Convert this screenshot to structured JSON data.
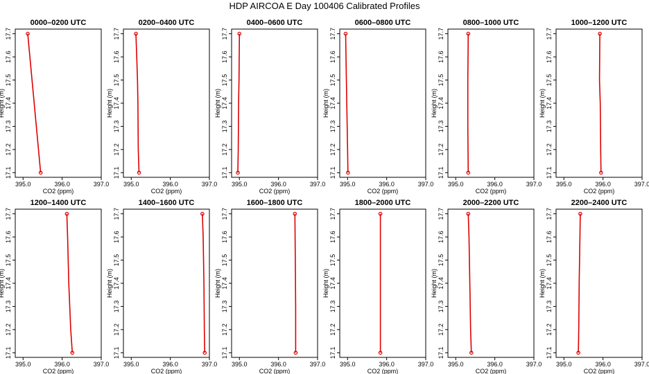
{
  "figure": {
    "title": "HDP AIRCOA E  Day 100406  Calibrated Profiles",
    "xlabel": "CO2 (ppm)",
    "ylabel": "Height (m)",
    "colors": {
      "profile": "#dd0000",
      "axis": "#000000"
    }
  },
  "chart_data": [
    {
      "type": "line",
      "title": "0000–0200 UTC",
      "xlim": [
        394.8,
        397.0
      ],
      "ylim": [
        17.08,
        17.72
      ],
      "xticks": [
        "395.0",
        "396.0",
        "397.0"
      ],
      "yticks": [
        "17.1",
        "17.2",
        "17.3",
        "17.4",
        "17.5",
        "17.6",
        "17.7"
      ],
      "series": [
        {
          "x": [
            395.12,
            395.45
          ],
          "y": [
            17.7,
            17.1
          ]
        }
      ]
    },
    {
      "type": "line",
      "title": "0200–0400 UTC",
      "xlim": [
        394.8,
        397.0
      ],
      "ylim": [
        17.08,
        17.72
      ],
      "xticks": [
        "395.0",
        "396.0",
        "397.0"
      ],
      "yticks": [
        "17.1",
        "17.2",
        "17.3",
        "17.4",
        "17.5",
        "17.6",
        "17.7"
      ],
      "series": [
        {
          "x": [
            395.12,
            395.14,
            395.16,
            395.17,
            395.18,
            395.2
          ],
          "y": [
            17.7,
            17.6,
            17.5,
            17.4,
            17.2,
            17.1
          ]
        }
      ]
    },
    {
      "type": "line",
      "title": "0400–0600 UTC",
      "xlim": [
        394.8,
        397.0
      ],
      "ylim": [
        17.08,
        17.72
      ],
      "xticks": [
        "395.0",
        "396.0",
        "397.0"
      ],
      "yticks": [
        "17.1",
        "17.2",
        "17.3",
        "17.4",
        "17.5",
        "17.6",
        "17.7"
      ],
      "series": [
        {
          "x": [
            395.0,
            394.99,
            394.98,
            394.97,
            394.96
          ],
          "y": [
            17.7,
            17.5,
            17.4,
            17.2,
            17.1
          ]
        }
      ]
    },
    {
      "type": "line",
      "title": "0600–0800 UTC",
      "xlim": [
        394.8,
        397.0
      ],
      "ylim": [
        17.08,
        17.72
      ],
      "xticks": [
        "395.0",
        "396.0",
        "397.0"
      ],
      "yticks": [
        "17.1",
        "17.2",
        "17.3",
        "17.4",
        "17.5",
        "17.6",
        "17.7"
      ],
      "series": [
        {
          "x": [
            394.95,
            394.96,
            394.98,
            395.0,
            395.01
          ],
          "y": [
            17.7,
            17.6,
            17.4,
            17.2,
            17.1
          ]
        }
      ]
    },
    {
      "type": "line",
      "title": "0800–1000 UTC",
      "xlim": [
        394.8,
        397.0
      ],
      "ylim": [
        17.08,
        17.72
      ],
      "xticks": [
        "395.0",
        "396.0",
        "397.0"
      ],
      "yticks": [
        "17.1",
        "17.2",
        "17.3",
        "17.4",
        "17.5",
        "17.6",
        "17.7"
      ],
      "series": [
        {
          "x": [
            395.32,
            395.31,
            395.31,
            395.32
          ],
          "y": [
            17.7,
            17.5,
            17.3,
            17.1
          ]
        }
      ]
    },
    {
      "type": "line",
      "title": "1000–1200 UTC",
      "xlim": [
        394.8,
        397.0
      ],
      "ylim": [
        17.08,
        17.72
      ],
      "xticks": [
        "395.0",
        "396.0",
        "397.0"
      ],
      "yticks": [
        "17.1",
        "17.2",
        "17.3",
        "17.4",
        "17.5",
        "17.6",
        "17.7"
      ],
      "series": [
        {
          "x": [
            395.92,
            395.91,
            395.93,
            395.94,
            395.95
          ],
          "y": [
            17.7,
            17.5,
            17.4,
            17.2,
            17.1
          ]
        }
      ]
    },
    {
      "type": "line",
      "title": "1200–1400 UTC",
      "xlim": [
        394.8,
        397.0
      ],
      "ylim": [
        17.08,
        17.72
      ],
      "xticks": [
        "395.0",
        "396.0",
        "397.0"
      ],
      "yticks": [
        "17.1",
        "17.2",
        "17.3",
        "17.4",
        "17.5",
        "17.6",
        "17.7"
      ],
      "series": [
        {
          "x": [
            396.12,
            396.14,
            396.17,
            396.22,
            396.26
          ],
          "y": [
            17.7,
            17.6,
            17.4,
            17.2,
            17.1
          ]
        }
      ]
    },
    {
      "type": "line",
      "title": "1400–1600 UTC",
      "xlim": [
        394.8,
        397.0
      ],
      "ylim": [
        17.08,
        17.72
      ],
      "xticks": [
        "395.0",
        "396.0",
        "397.0"
      ],
      "yticks": [
        "17.1",
        "17.2",
        "17.3",
        "17.4",
        "17.5",
        "17.6",
        "17.7"
      ],
      "series": [
        {
          "x": [
            396.82,
            396.84,
            396.86,
            396.87,
            396.88
          ],
          "y": [
            17.7,
            17.6,
            17.4,
            17.2,
            17.1
          ]
        }
      ]
    },
    {
      "type": "line",
      "title": "1600–1800 UTC",
      "xlim": [
        394.8,
        397.0
      ],
      "ylim": [
        17.08,
        17.72
      ],
      "xticks": [
        "395.0",
        "396.0",
        "397.0"
      ],
      "yticks": [
        "17.1",
        "17.2",
        "17.3",
        "17.4",
        "17.5",
        "17.6",
        "17.7"
      ],
      "series": [
        {
          "x": [
            396.42,
            396.43,
            396.44,
            396.44
          ],
          "y": [
            17.7,
            17.5,
            17.3,
            17.1
          ]
        }
      ]
    },
    {
      "type": "line",
      "title": "1800–2000 UTC",
      "xlim": [
        394.8,
        397.0
      ],
      "ylim": [
        17.08,
        17.72
      ],
      "xticks": [
        "395.0",
        "396.0",
        "397.0"
      ],
      "yticks": [
        "17.1",
        "17.2",
        "17.3",
        "17.4",
        "17.5",
        "17.6",
        "17.7"
      ],
      "series": [
        {
          "x": [
            395.84,
            395.84
          ],
          "y": [
            17.7,
            17.1
          ]
        }
      ]
    },
    {
      "type": "line",
      "title": "2000–2200 UTC",
      "xlim": [
        394.8,
        397.0
      ],
      "ylim": [
        17.08,
        17.72
      ],
      "xticks": [
        "395.0",
        "396.0",
        "397.0"
      ],
      "yticks": [
        "17.1",
        "17.2",
        "17.3",
        "17.4",
        "17.5",
        "17.6",
        "17.7"
      ],
      "series": [
        {
          "x": [
            395.32,
            395.34,
            395.36,
            395.38,
            395.4
          ],
          "y": [
            17.7,
            17.6,
            17.4,
            17.2,
            17.1
          ]
        }
      ]
    },
    {
      "type": "line",
      "title": "2200–2400 UTC",
      "xlim": [
        394.8,
        397.0
      ],
      "ylim": [
        17.08,
        17.72
      ],
      "xticks": [
        "395.0",
        "396.0",
        "397.0"
      ],
      "yticks": [
        "17.1",
        "17.2",
        "17.3",
        "17.4",
        "17.5",
        "17.6",
        "17.7"
      ],
      "series": [
        {
          "x": [
            395.42,
            395.41,
            395.39,
            395.38,
            395.37
          ],
          "y": [
            17.7,
            17.6,
            17.4,
            17.2,
            17.1
          ]
        }
      ]
    }
  ]
}
